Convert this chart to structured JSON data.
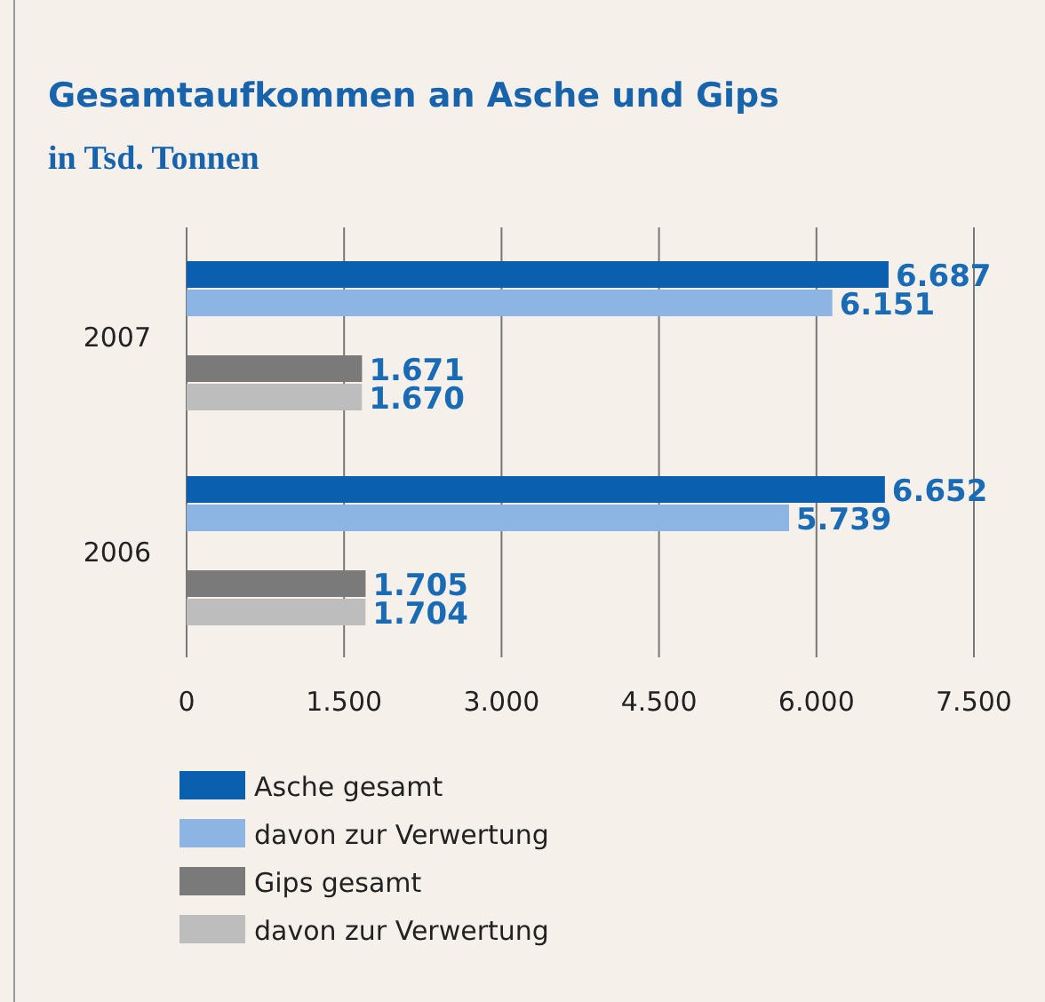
{
  "chart_data": {
    "type": "bar",
    "orientation": "horizontal",
    "title": "Gesamtaufkommen an Asche und Gips",
    "subtitle": "in Tsd. Tonnen",
    "categories": [
      "2007",
      "2006"
    ],
    "series": [
      {
        "name": "Asche gesamt",
        "color": "#0a5fae",
        "values": [
          6687,
          6652
        ],
        "value_labels": [
          "6.687",
          "6.652"
        ]
      },
      {
        "name": "davon zur Verwertung",
        "color": "#8db5e3",
        "values": [
          6151,
          5739
        ],
        "value_labels": [
          "6.151",
          "5.739"
        ]
      },
      {
        "name": "Gips gesamt",
        "color": "#7a7a7a",
        "values": [
          1671,
          1705
        ],
        "value_labels": [
          "1.671",
          "1.705"
        ]
      },
      {
        "name": "davon zur Verwertung",
        "color": "#bdbdbd",
        "values": [
          1670,
          1704
        ],
        "value_labels": [
          "1.670",
          "1.704"
        ]
      }
    ],
    "xlim": [
      0,
      7500
    ],
    "xticks": [
      0,
      {
        "value": 1500,
        "label": "1.500"
      },
      {
        "value": 3000,
        "label": "3.000"
      },
      {
        "value": 4500,
        "label": "4.500"
      },
      {
        "value": 6000,
        "label": "6.000"
      },
      {
        "value": 7500,
        "label": "7.500"
      }
    ],
    "grid": "x",
    "legend": "bottom"
  }
}
